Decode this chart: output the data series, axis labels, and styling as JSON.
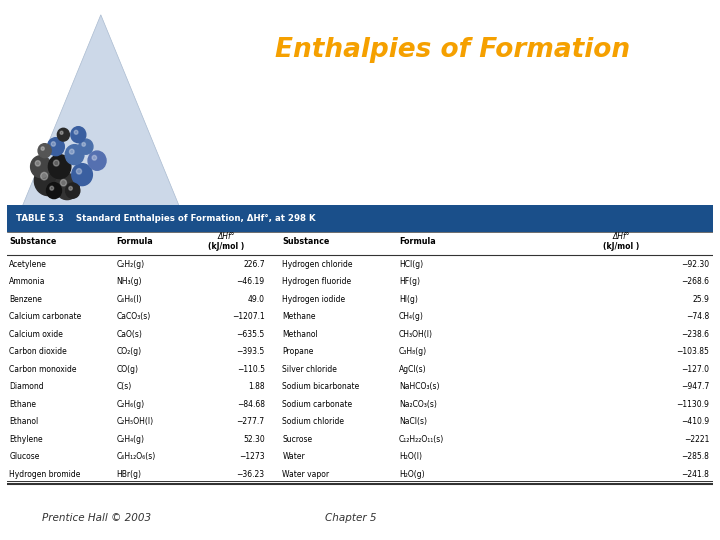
{
  "title": "Enthalpies of Formation",
  "title_bg": "#1a4f8a",
  "title_color": "#f5a000",
  "table_header_bg": "#1a4f8a",
  "table_header_color": "white",
  "table_title": "TABLE 5.3    Standard Enthalpies of Formation, ΔHf°, at 298 K",
  "left_data": [
    [
      "Acetylene",
      "C₂H₂(g)",
      "226.7"
    ],
    [
      "Ammonia",
      "NH₃(g)",
      "−46.19"
    ],
    [
      "Benzene",
      "C₆H₆(l)",
      "49.0"
    ],
    [
      "Calcium carbonate",
      "CaCO₃(s)",
      "−1207.1"
    ],
    [
      "Calcium oxide",
      "CaO(s)",
      "−635.5"
    ],
    [
      "Carbon dioxide",
      "CO₂(g)",
      "−393.5"
    ],
    [
      "Carbon monoxide",
      "CO(g)",
      "−110.5"
    ],
    [
      "Diamond",
      "C(s)",
      "1.88"
    ],
    [
      "Ethane",
      "C₂H₆(g)",
      "−84.68"
    ],
    [
      "Ethanol",
      "C₂H₅OH(l)",
      "−277.7"
    ],
    [
      "Ethylene",
      "C₂H₄(g)",
      "52.30"
    ],
    [
      "Glucose",
      "C₆H₁₂O₆(s)",
      "−1273"
    ],
    [
      "Hydrogen bromide",
      "HBr(g)",
      "−36.23"
    ]
  ],
  "right_data": [
    [
      "Hydrogen chloride",
      "HCl(g)",
      "−92.30"
    ],
    [
      "Hydrogen fluoride",
      "HF(g)",
      "−268.6"
    ],
    [
      "Hydrogen iodide",
      "HI(g)",
      "25.9"
    ],
    [
      "Methane",
      "CH₄(g)",
      "−74.8"
    ],
    [
      "Methanol",
      "CH₃OH(l)",
      "−238.6"
    ],
    [
      "Propane",
      "C₃H₈(g)",
      "−103.85"
    ],
    [
      "Silver chloride",
      "AgCl(s)",
      "−127.0"
    ],
    [
      "Sodium bicarbonate",
      "NaHCO₃(s)",
      "−947.7"
    ],
    [
      "Sodium carbonate",
      "Na₂CO₃(s)",
      "−1130.9"
    ],
    [
      "Sodium chloride",
      "NaCl(s)",
      "−410.9"
    ],
    [
      "Sucrose",
      "C₁₂H₂₂O₁₁(s)",
      "−2221"
    ],
    [
      "Water",
      "H₂O(l)",
      "−285.8"
    ],
    [
      "Water vapor",
      "H₂O(g)",
      "−241.8"
    ]
  ],
  "footer_left": "Prentice Hall © 2003",
  "footer_center": "Chapter 5",
  "bg_color": "#ffffff",
  "tri_light": "#d8e4f0",
  "tri_mid": "#b0c8e0",
  "tri_dark": "#8090a8"
}
